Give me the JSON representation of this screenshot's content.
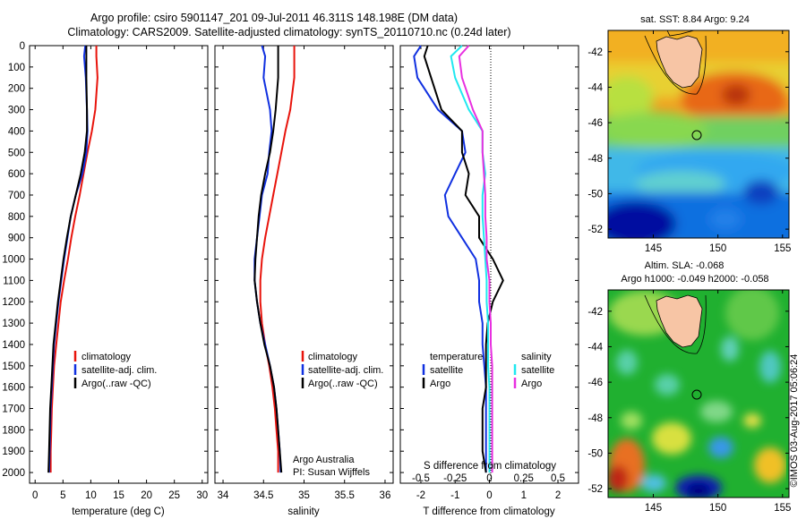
{
  "title": {
    "line1": "Argo profile: csiro 5901147_201 09-Jul-2011 46.311S 148.198E (DM data)",
    "line2": "Climatology: CARS2009. Satellite-adjusted climatology: synTS_20110710.nc (0.24d later)"
  },
  "depth_ticks": [
    "0",
    "100",
    "200",
    "300",
    "400",
    "500",
    "600",
    "700",
    "800",
    "900",
    "1000",
    "1100",
    "1200",
    "1300",
    "1400",
    "1500",
    "1600",
    "1700",
    "1800",
    "1900",
    "2000"
  ],
  "panels": {
    "temperature": {
      "xlabel": "temperature (deg C)",
      "xticks": [
        "0",
        "5",
        "10",
        "15",
        "20",
        "25",
        "30"
      ],
      "legend": [
        "climatology",
        "satellite-adj. clim.",
        "Argo(..raw -QC)"
      ]
    },
    "salinity": {
      "xlabel": "salinity",
      "xticks": [
        "34",
        "34.5",
        "35",
        "35.5",
        "36"
      ],
      "legend": [
        "climatology",
        "satellite-adj. clim.",
        "Argo(..raw -QC)"
      ],
      "note1": "Argo Australia",
      "note2": "PI: Susan Wijffels"
    },
    "difference": {
      "xlabel": "T difference from climatology",
      "top_label": "S difference from climatology",
      "xticks": [
        "-2",
        "-1",
        "0",
        "1",
        "2"
      ],
      "sticks": [
        "-0.5",
        "-0.25",
        "0",
        "0.25",
        "0.5"
      ],
      "legend_temp_title": "temperature",
      "legend_sal_title": "salinity",
      "legend_items": [
        "satellite",
        "Argo",
        "satellite",
        "Argo"
      ]
    }
  },
  "maps": {
    "sst": {
      "title": "sat. SST: 8.84  Argo: 9.24",
      "yticks": [
        "-42",
        "-44",
        "-46",
        "-48",
        "-50",
        "-52"
      ],
      "xticks": [
        "145",
        "150",
        "155"
      ]
    },
    "sla": {
      "title1": "Altim. SLA: -0.068",
      "title2": "Argo h1000: -0.049 h2000: -0.058",
      "yticks": [
        "-42",
        "-44",
        "-46",
        "-48",
        "-50",
        "-52"
      ],
      "xticks": [
        "145",
        "150",
        "155"
      ]
    }
  },
  "credit": "©IMOS 03-Aug-2017 05:06:24",
  "colors": {
    "climatology": "#e8140c",
    "satellite": "#1030e0",
    "argo": "#000000",
    "sal_satellite": "#20e8f0",
    "sal_argo": "#e830e0"
  },
  "chart_data": [
    {
      "type": "line",
      "title": "",
      "xlabel": "temperature (deg C)",
      "ylabel": "",
      "xlim": [
        -1,
        31
      ],
      "ylim": [
        2050,
        0
      ],
      "series": [
        {
          "name": "climatology",
          "x": [
            11.0,
            11.0,
            11.2,
            10.8,
            10.2,
            9.4,
            8.7,
            8.0,
            7.2,
            6.5,
            5.9,
            5.2,
            4.6,
            4.2,
            3.8,
            3.4,
            3.2,
            3.0,
            2.9,
            2.8,
            2.8
          ],
          "y": [
            0,
            50,
            150,
            300,
            400,
            500,
            600,
            700,
            800,
            900,
            1000,
            1100,
            1200,
            1300,
            1400,
            1500,
            1600,
            1700,
            1800,
            1900,
            2000
          ]
        },
        {
          "name": "satellite-adj. clim.",
          "x": [
            9.0,
            8.8,
            9.1,
            9.3,
            9.4,
            9.2,
            8.5,
            7.3,
            6.4,
            5.8,
            5.2,
            4.7,
            4.2,
            3.8,
            3.4,
            3.2,
            3.0,
            2.8,
            2.7,
            2.6,
            2.5
          ],
          "y": [
            0,
            50,
            150,
            300,
            400,
            500,
            600,
            700,
            800,
            900,
            1000,
            1100,
            1200,
            1300,
            1400,
            1500,
            1600,
            1700,
            1800,
            1900,
            2000
          ]
        },
        {
          "name": "Argo(..raw -QC)",
          "x": [
            9.2,
            9.2,
            9.2,
            9.3,
            9.3,
            8.9,
            8.2,
            7.3,
            6.4,
            5.7,
            5.1,
            4.6,
            4.1,
            3.7,
            3.3,
            3.1,
            2.9,
            2.7,
            2.6,
            2.5,
            2.4
          ],
          "y": [
            0,
            50,
            150,
            300,
            400,
            500,
            600,
            700,
            800,
            900,
            1000,
            1100,
            1200,
            1300,
            1400,
            1500,
            1600,
            1700,
            1800,
            1900,
            2000
          ]
        }
      ]
    },
    {
      "type": "line",
      "title": "",
      "xlabel": "salinity",
      "ylabel": "",
      "xlim": [
        33.9,
        36.1
      ],
      "ylim": [
        2050,
        0
      ],
      "series": [
        {
          "name": "climatology",
          "x": [
            34.88,
            34.88,
            34.88,
            34.83,
            34.77,
            34.72,
            34.67,
            34.62,
            34.57,
            34.52,
            34.48,
            34.46,
            34.46,
            34.48,
            34.52,
            34.57,
            34.61,
            34.64,
            34.66,
            34.68,
            34.68
          ],
          "y": [
            0,
            50,
            150,
            300,
            400,
            500,
            600,
            700,
            800,
            900,
            1000,
            1100,
            1200,
            1300,
            1400,
            1500,
            1600,
            1700,
            1800,
            1900,
            2000
          ]
        },
        {
          "name": "satellite-adj. clim.",
          "x": [
            34.48,
            34.52,
            34.5,
            34.58,
            34.6,
            34.57,
            34.55,
            34.48,
            34.45,
            34.42,
            34.39,
            34.39,
            34.42,
            34.46,
            34.52,
            34.58,
            34.63,
            34.66,
            34.68,
            34.7,
            34.71
          ],
          "y": [
            0,
            50,
            150,
            300,
            400,
            500,
            600,
            700,
            800,
            900,
            1000,
            1100,
            1200,
            1300,
            1400,
            1500,
            1600,
            1700,
            1800,
            1900,
            2000
          ]
        },
        {
          "name": "Argo(..raw -QC)",
          "x": [
            34.68,
            34.68,
            34.68,
            34.65,
            34.62,
            34.58,
            34.52,
            34.47,
            34.44,
            34.42,
            34.4,
            34.39,
            34.42,
            34.46,
            34.51,
            34.58,
            34.63,
            34.66,
            34.68,
            34.7,
            34.72
          ],
          "y": [
            0,
            50,
            150,
            300,
            400,
            500,
            600,
            700,
            800,
            900,
            1000,
            1100,
            1200,
            1300,
            1400,
            1500,
            1600,
            1700,
            1800,
            1900,
            2000
          ]
        }
      ]
    },
    {
      "type": "line",
      "title": "",
      "xlabel": "T difference from climatology",
      "ylabel": "",
      "xlim": [
        -2.6,
        2.6
      ],
      "ylim": [
        2050,
        0
      ],
      "series": [
        {
          "name": "temperature satellite",
          "x": [
            -2.0,
            -2.2,
            -2.1,
            -1.5,
            -0.8,
            -0.7,
            -1.0,
            -1.3,
            -1.2,
            -0.8,
            -0.4,
            -0.3,
            -0.3,
            -0.2,
            -0.2,
            -0.15,
            -0.1,
            -0.1,
            -0.1,
            -0.1,
            -0.1
          ],
          "y": [
            0,
            50,
            150,
            300,
            400,
            500,
            600,
            700,
            800,
            900,
            1000,
            1100,
            1200,
            1300,
            1400,
            1500,
            1600,
            1700,
            1800,
            1900,
            2000
          ]
        },
        {
          "name": "temperature Argo",
          "x": [
            -1.8,
            -1.9,
            -1.7,
            -1.4,
            -0.8,
            -0.8,
            -0.6,
            -0.7,
            -0.3,
            -0.3,
            0.1,
            0.4,
            0.1,
            -0.05,
            -0.1,
            -0.1,
            -0.1,
            -0.2,
            -0.2,
            -0.2,
            -0.1
          ],
          "y": [
            0,
            50,
            150,
            300,
            400,
            500,
            600,
            700,
            800,
            900,
            1000,
            1100,
            1200,
            1300,
            1400,
            1500,
            1600,
            1700,
            1800,
            1900,
            2000
          ]
        },
        {
          "name": "salinity satellite",
          "x": [
            -0.2,
            -0.28,
            -0.25,
            -0.15,
            -0.05,
            -0.05,
            -0.03,
            -0.05,
            -0.05,
            -0.04,
            -0.03,
            -0.02,
            -0.02,
            -0.01,
            -0.01,
            -0.01,
            0.0,
            0.0,
            0.0,
            0.0,
            0.0
          ],
          "y": [
            0,
            50,
            150,
            300,
            400,
            500,
            600,
            700,
            800,
            900,
            1000,
            1100,
            1200,
            1300,
            1400,
            1500,
            1600,
            1700,
            1800,
            1900,
            2000
          ]
        },
        {
          "name": "salinity Argo",
          "x": [
            -0.15,
            -0.22,
            -0.2,
            -0.12,
            -0.05,
            -0.05,
            -0.04,
            -0.03,
            -0.03,
            -0.02,
            -0.02,
            0.0,
            0.0,
            0.01,
            0.01,
            0.02,
            0.02,
            0.02,
            0.02,
            0.02,
            0.02
          ],
          "y": [
            0,
            50,
            150,
            300,
            400,
            500,
            600,
            700,
            800,
            900,
            1000,
            1100,
            1200,
            1300,
            1400,
            1500,
            1600,
            1700,
            1800,
            1900,
            2000
          ]
        }
      ]
    },
    {
      "type": "heatmap",
      "title": "sat. SST: 8.84  Argo: 9.24",
      "xlim": [
        141.5,
        155.5
      ],
      "ylim": [
        -52.5,
        -40.8
      ],
      "float_position": {
        "lon": 148.198,
        "lat": -46.311
      }
    },
    {
      "type": "heatmap",
      "title": "Altim. SLA: -0.068",
      "xlim": [
        141.5,
        155.5
      ],
      "ylim": [
        -52.5,
        -40.8
      ],
      "float_position": {
        "lon": 148.198,
        "lat": -46.311
      }
    }
  ]
}
